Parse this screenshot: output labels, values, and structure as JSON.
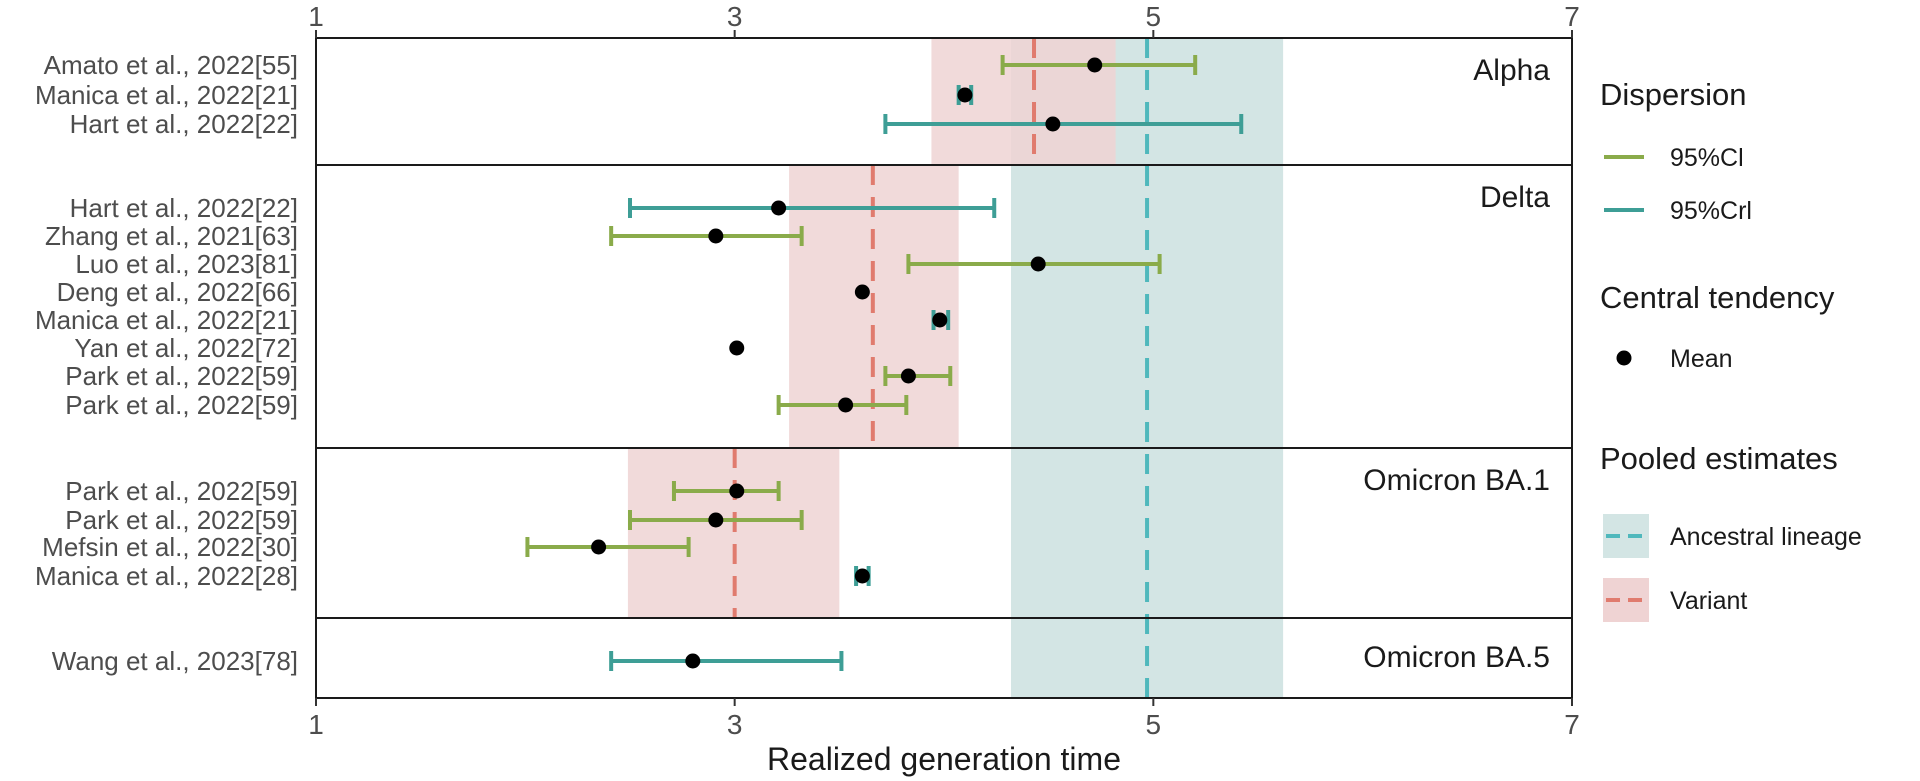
{
  "chart_data": {
    "type": "forest",
    "xlabel": "Realized generation time",
    "xlim": [
      1,
      7
    ],
    "xticks": [
      1,
      3,
      5,
      7
    ],
    "grid": false,
    "legend_position": "right",
    "colors": {
      "cl": "#8aab4a",
      "crl": "#3e9e96",
      "ancestral_line": "#4fb8bc",
      "ancestral_band": "#d3e5e4",
      "variant_line": "#e07b6e",
      "variant_band": "#efd3d3",
      "mean": "#000000"
    },
    "ancestral_pooled": {
      "estimate": 4.97,
      "lower": 4.32,
      "upper": 5.62
    },
    "panels": [
      {
        "label": "Alpha",
        "variant_pooled": {
          "estimate": 4.43,
          "lower": 3.94,
          "upper": 4.82
        },
        "studies": [
          {
            "label": "Amato et al., 2022[55]",
            "mean": 4.72,
            "lower": 4.28,
            "upper": 5.2,
            "interval": "95%Cl"
          },
          {
            "label": "Manica et al., 2022[21]",
            "mean": 4.1,
            "lower": 4.07,
            "upper": 4.13,
            "interval": "95%Crl"
          },
          {
            "label": "Hart et al., 2022[22]",
            "mean": 4.52,
            "lower": 3.72,
            "upper": 5.42,
            "interval": "95%Crl"
          }
        ]
      },
      {
        "label": "Delta",
        "variant_pooled": {
          "estimate": 3.66,
          "lower": 3.26,
          "upper": 4.07
        },
        "studies": [
          {
            "label": "Hart et al., 2022[22]",
            "mean": 3.21,
            "lower": 2.5,
            "upper": 4.24,
            "interval": "95%Crl"
          },
          {
            "label": "Zhang et al., 2021[63]",
            "mean": 2.91,
            "lower": 2.41,
            "upper": 3.32,
            "interval": "95%Cl"
          },
          {
            "label": "Luo et al., 2023[81]",
            "mean": 4.45,
            "lower": 3.83,
            "upper": 5.03,
            "interval": "95%Cl"
          },
          {
            "label": "Deng et al., 2022[66]",
            "mean": 3.61,
            "lower": null,
            "upper": null,
            "interval": ""
          },
          {
            "label": "Manica et al., 2022[21]",
            "mean": 3.98,
            "lower": 3.95,
            "upper": 4.02,
            "interval": "95%Crl"
          },
          {
            "label": "Yan et al., 2022[72]",
            "mean": 3.01,
            "lower": null,
            "upper": null,
            "interval": ""
          },
          {
            "label": "Park et al., 2022[59]",
            "mean": 3.83,
            "lower": 3.72,
            "upper": 4.03,
            "interval": "95%Cl"
          },
          {
            "label": "Park et al., 2022[59]",
            "mean": 3.53,
            "lower": 3.21,
            "upper": 3.82,
            "interval": "95%Cl"
          }
        ]
      },
      {
        "label": "Omicron BA.1",
        "variant_pooled": {
          "estimate": 3.0,
          "lower": 2.49,
          "upper": 3.5
        },
        "studies": [
          {
            "label": "Park et al., 2022[59]",
            "mean": 3.01,
            "lower": 2.71,
            "upper": 3.21,
            "interval": "95%Cl"
          },
          {
            "label": "Park et al., 2022[59]",
            "mean": 2.91,
            "lower": 2.5,
            "upper": 3.32,
            "interval": "95%Cl"
          },
          {
            "label": "Mefsin et al., 2022[30]",
            "mean": 2.35,
            "lower": 2.01,
            "upper": 2.78,
            "interval": "95%Cl"
          },
          {
            "label": "Manica et al., 2022[28]",
            "mean": 3.61,
            "lower": 3.58,
            "upper": 3.64,
            "interval": "95%Crl"
          }
        ]
      },
      {
        "label": "Omicron BA.5",
        "variant_pooled": null,
        "studies": [
          {
            "label": "Wang et al., 2023[78]",
            "mean": 2.8,
            "lower": 2.41,
            "upper": 3.51,
            "interval": "95%Crl"
          }
        ]
      }
    ]
  },
  "legend": {
    "dispersion_title": "Dispersion",
    "dispersion_items": [
      "95%Cl",
      "95%Crl"
    ],
    "central_title": "Central tendency",
    "central_items": [
      "Mean"
    ],
    "pooled_title": "Pooled estimates",
    "pooled_items": [
      "Ancestral lineage",
      "Variant"
    ]
  }
}
